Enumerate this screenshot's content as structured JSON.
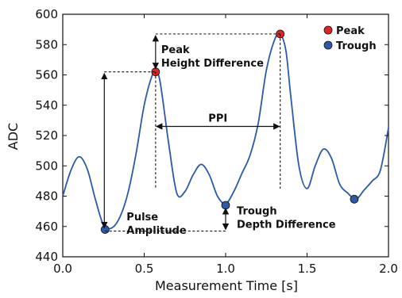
{
  "chart_data": {
    "type": "line",
    "xlabel": "Measurement Time [s]",
    "ylabel": "ADC",
    "xlim": [
      0.0,
      2.0
    ],
    "ylim": [
      440,
      600
    ],
    "xticks": [
      "0.0",
      "0.5",
      "1.0",
      "1.5",
      "2.0"
    ],
    "xtick_values": [
      0.0,
      0.5,
      1.0,
      1.5,
      2.0
    ],
    "yticks": [
      "440",
      "460",
      "480",
      "500",
      "520",
      "540",
      "560",
      "580",
      "600"
    ],
    "ytick_values": [
      440,
      460,
      480,
      500,
      520,
      540,
      560,
      580,
      600
    ],
    "grid": false,
    "line_color": "#2a5aa8",
    "series": [
      {
        "x": [
          0.0,
          0.05,
          0.1,
          0.15,
          0.2,
          0.25,
          0.3,
          0.35,
          0.4,
          0.45,
          0.5,
          0.55,
          0.575,
          0.6,
          0.65,
          0.7,
          0.75,
          0.8,
          0.85,
          0.9,
          0.95,
          1.0,
          1.05,
          1.1,
          1.15,
          1.2,
          1.25,
          1.3,
          1.335,
          1.37,
          1.4,
          1.45,
          1.5,
          1.55,
          1.6,
          1.65,
          1.7,
          1.75,
          1.8,
          1.85,
          1.9,
          1.95,
          2.0
        ],
        "y": [
          480,
          497,
          506,
          498,
          478,
          461,
          459,
          466,
          482,
          508,
          540,
          560,
          562,
          554,
          515,
          482,
          483,
          494,
          501,
          494,
          480,
          475,
          483,
          495,
          507,
          528,
          563,
          583,
          587,
          576,
          546,
          500,
          485,
          500,
          511,
          505,
          488,
          482,
          478,
          484,
          490,
          497,
          525
        ]
      }
    ],
    "peaks": {
      "label": "Peak",
      "color": "#e02424",
      "points": [
        {
          "x": 0.57,
          "y": 562
        },
        {
          "x": 1.335,
          "y": 587
        }
      ]
    },
    "troughs": {
      "label": "Trough",
      "color": "#2a5aa8",
      "points": [
        {
          "x": 0.26,
          "y": 458
        },
        {
          "x": 1.0,
          "y": 474
        },
        {
          "x": 1.79,
          "y": 478
        }
      ]
    },
    "annotations": {
      "peak_height_difference": "Peak\nHeight Difference",
      "ppi": "PPI",
      "pulse_amplitude": "Pulse\nAmplitude",
      "trough_depth_difference": "Trough\nDepth Difference"
    },
    "legend_position": "top-right"
  }
}
